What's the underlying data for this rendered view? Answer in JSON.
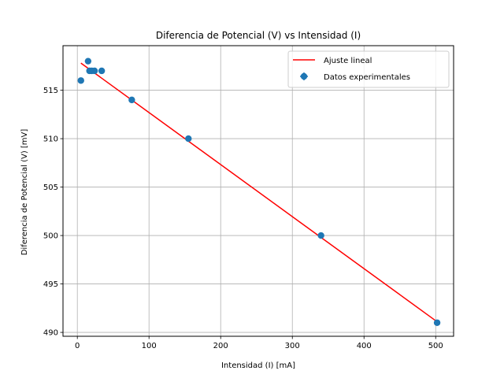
{
  "chart_data": {
    "type": "scatter",
    "title": "Diferencia de Potencial (V) vs Intensidad (I)",
    "xlabel": "Intensidad (I) [mA]",
    "ylabel": "Diferencia de Potencial (V) [mV]",
    "xlim": [
      -20,
      525
    ],
    "ylim": [
      489.6,
      519.6
    ],
    "xticks": [
      0,
      100,
      200,
      300,
      400,
      500
    ],
    "yticks": [
      490,
      495,
      500,
      505,
      510,
      515
    ],
    "grid": true,
    "legend_position": "top-right",
    "series": [
      {
        "name": "Datos experimentales",
        "kind": "points",
        "color": "#1f77b4",
        "x": [
          5,
          15,
          17,
          20,
          24,
          34,
          76,
          155,
          340,
          502
        ],
        "y": [
          516,
          518,
          517,
          517,
          517,
          517,
          514,
          510,
          500,
          491
        ]
      },
      {
        "name": "Ajuste lineal",
        "kind": "line",
        "color": "#ff0000",
        "x": [
          5,
          502
        ],
        "y": [
          517.8,
          491.1
        ]
      }
    ]
  }
}
